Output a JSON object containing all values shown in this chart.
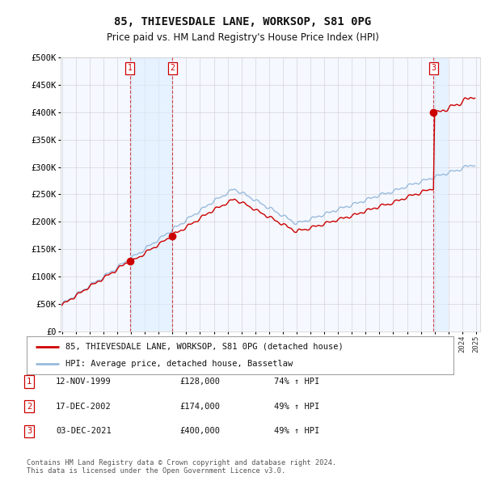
{
  "title": "85, THIEVESDALE LANE, WORKSOP, S81 0PG",
  "subtitle": "Price paid vs. HM Land Registry's House Price Index (HPI)",
  "legend_line1": "85, THIEVESDALE LANE, WORKSOP, S81 0PG (detached house)",
  "legend_line2": "HPI: Average price, detached house, Bassetlaw",
  "footer1": "Contains HM Land Registry data © Crown copyright and database right 2024.",
  "footer2": "This data is licensed under the Open Government Licence v3.0.",
  "sale_markers": [
    {
      "label": "1",
      "date_t": 4.92,
      "year_label": "12-NOV-1999",
      "price": 128000,
      "pct": "74%",
      "direction": "↑"
    },
    {
      "label": "2",
      "date_t": 8.0,
      "year_label": "17-DEC-2002",
      "price": 174000,
      "pct": "49%",
      "direction": "↑"
    },
    {
      "label": "3",
      "date_t": 26.92,
      "year_label": "03-DEC-2021",
      "price": 400000,
      "pct": "49%",
      "direction": "↑"
    }
  ],
  "x_start_year": 1995,
  "x_end_year": 2025,
  "ylim": [
    0,
    500000
  ],
  "yticks": [
    0,
    50000,
    100000,
    150000,
    200000,
    250000,
    300000,
    350000,
    400000,
    450000,
    500000
  ],
  "background_color": "#ffffff",
  "plot_bg_color": "#f5f8ff",
  "grid_color": "#cccccc",
  "red_line_color": "#cc0000",
  "blue_line_color": "#99bbdd",
  "sale_bg_color": "#ddeeff",
  "sale_line_color": "#cc0000",
  "marker_box_color": "#cc0000",
  "dot_color": "#cc0000"
}
